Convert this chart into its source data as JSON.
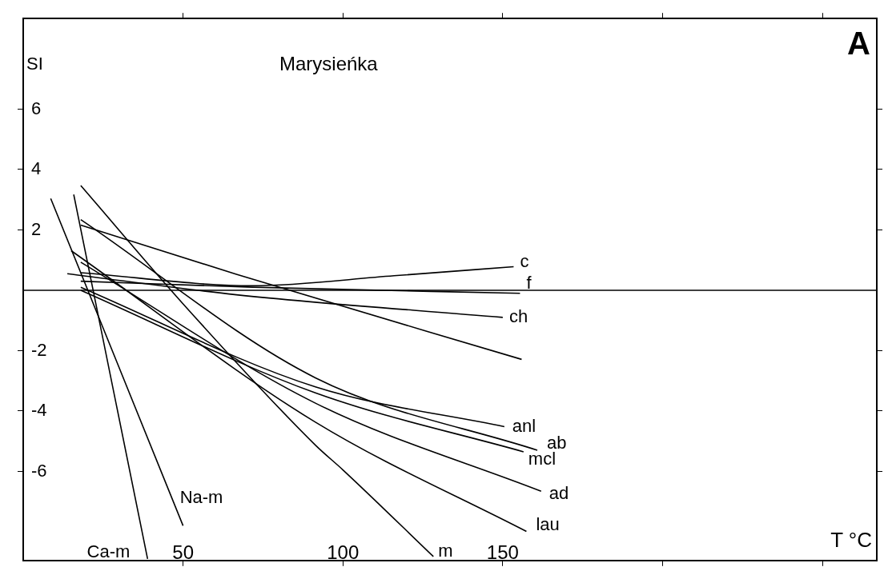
{
  "chart_data": {
    "type": "line",
    "title": "Marysieńka",
    "xlabel": "T °C",
    "ylabel": "SI",
    "annotations": [
      "A"
    ],
    "xlim": [
      0,
      267
    ],
    "ylim": [
      -8.95,
      9
    ],
    "xticks": [
      50,
      100,
      150,
      {
        "value": 200,
        "label": null
      },
      {
        "value": 250,
        "label": null
      }
    ],
    "yticks": [
      -6,
      -4,
      -2,
      2,
      4,
      6
    ],
    "ref_lines": [
      {
        "axis": "y",
        "value": 0,
        "color": "#000000"
      }
    ],
    "series": [
      {
        "name": "c",
        "color": "#000000",
        "x": [
          18,
          71.7,
          116,
          153.4
        ],
        "values": [
          0.58,
          0.15,
          0.48,
          0.78
        ]
      },
      {
        "name": "f",
        "color": "#000000",
        "x": [
          18,
          71.7,
          155.4
        ],
        "values": [
          0.3,
          0.1,
          -0.1
        ]
      },
      {
        "name": "ch",
        "color": "#000000",
        "x": [
          13.8,
          66.7,
          150
        ],
        "values": [
          0.55,
          -0.15,
          -0.9
        ]
      },
      {
        "color": "#000000",
        "x": [
          18,
          66.7,
          155.9
        ],
        "values": [
          2.16,
          0.53,
          -2.29
        ]
      },
      {
        "name": "anl",
        "color": "#000000",
        "x": [
          18,
          91.4,
          150.5
        ],
        "values": [
          0.1,
          -3.2,
          -4.52
        ]
      },
      {
        "name": "ab",
        "color": "#000000",
        "x": [
          18,
          91.4,
          160.8
        ],
        "values": [
          2.34,
          -2.9,
          -5.3
        ]
      },
      {
        "name": "mcl",
        "color": "#000000",
        "x": [
          18,
          91.4,
          156.5
        ],
        "values": [
          0,
          -3.4,
          -5.35
        ]
      },
      {
        "name": "ad",
        "color": "#000000",
        "x": [
          18,
          91.4,
          162
        ],
        "values": [
          0.93,
          -3.74,
          -6.66
        ]
      },
      {
        "name": "lau",
        "color": "#000000",
        "x": [
          15,
          91.4,
          157.4
        ],
        "values": [
          1.31,
          -4.37,
          -7.99
        ]
      },
      {
        "name": "m",
        "color": "#000000",
        "x": [
          18,
          50,
          91.4,
          100,
          128.3
        ],
        "values": [
          3.47,
          -0.45,
          -5.13,
          -5.95,
          -8.82
        ]
      },
      {
        "name": "Na-m",
        "color": "#000000",
        "x": [
          8.6,
          50
        ],
        "values": [
          3.04,
          -7.8
        ]
      },
      {
        "name": "Ca-m",
        "color": "#000000",
        "x": [
          15.8,
          38.9
        ],
        "values": [
          3.17,
          -8.9
        ]
      }
    ]
  }
}
